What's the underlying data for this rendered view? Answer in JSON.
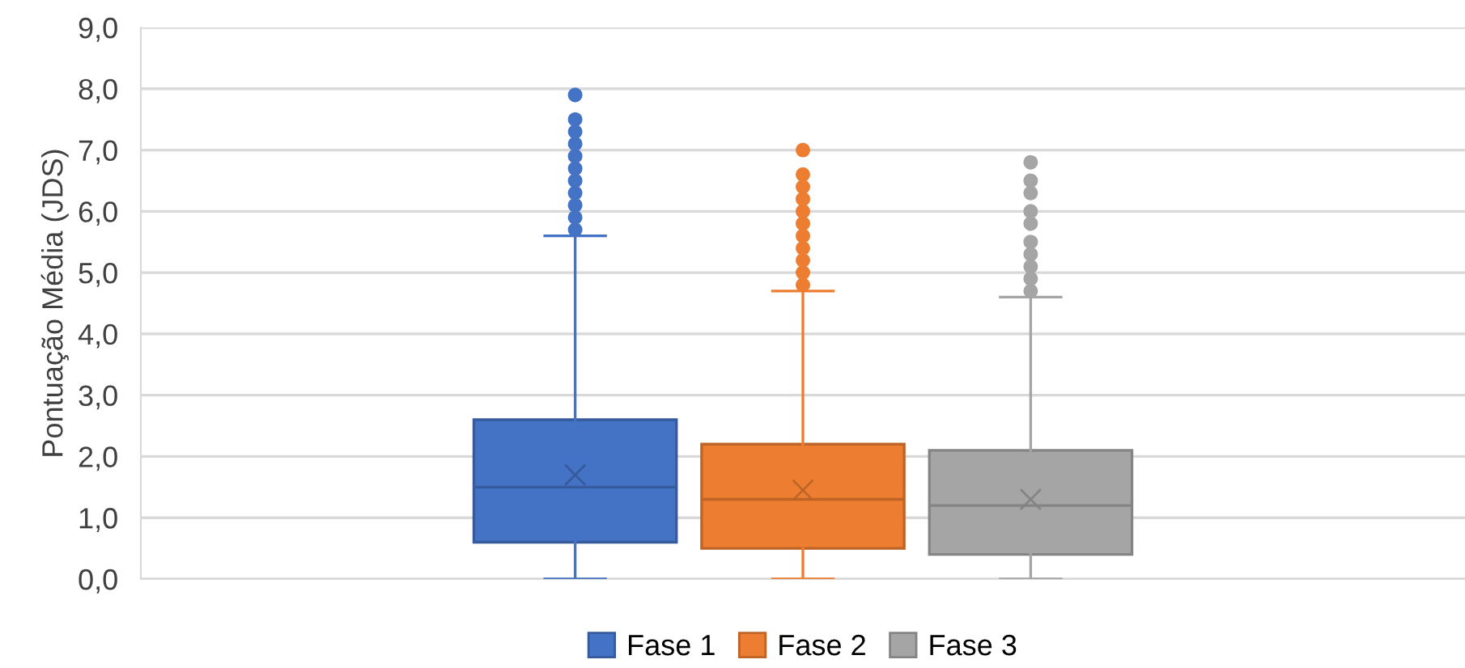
{
  "chart_data": {
    "type": "box",
    "ylabel": "Pontuação Média (JDS)",
    "categories": [
      null
    ],
    "series": [
      {
        "name": "Fase 1",
        "color": "#4472c4",
        "boxes": [
          {
            "low": 0,
            "q1": 0.6,
            "median": 1.5,
            "q3": 2.6,
            "high": 5.6,
            "mean": 1.7,
            "outliers": [
              5.7,
              5.9,
              6.1,
              6.3,
              6.5,
              6.7,
              6.9,
              7.1,
              7.3,
              7.5,
              7.9
            ]
          }
        ]
      },
      {
        "name": "Fase 2",
        "color": "#ed7d31",
        "boxes": [
          {
            "low": 0,
            "q1": 0.5,
            "median": 1.3,
            "q3": 2.2,
            "high": 4.7,
            "mean": 1.45,
            "outliers": [
              4.8,
              5.0,
              5.2,
              5.4,
              5.6,
              5.8,
              6.0,
              6.2,
              6.4,
              6.6,
              7.0
            ]
          }
        ]
      },
      {
        "name": "Fase 3",
        "color": "#a5a5a5",
        "boxes": [
          {
            "low": 0,
            "q1": 0.4,
            "median": 1.2,
            "q3": 2.1,
            "high": 4.6,
            "mean": 1.3,
            "outliers": [
              4.7,
              4.9,
              5.1,
              5.3,
              5.5,
              5.8,
              6.0,
              6.3,
              6.5,
              6.8
            ]
          }
        ]
      }
    ],
    "ylim": [
      0,
      9
    ],
    "yticks": [
      {
        "value": 0,
        "label": "0,0"
      },
      {
        "value": 1,
        "label": "1,0"
      },
      {
        "value": 2,
        "label": "2,0"
      },
      {
        "value": 3,
        "label": "3,0"
      },
      {
        "value": 4,
        "label": "4,0"
      },
      {
        "value": 5,
        "label": "5,0"
      },
      {
        "value": 6,
        "label": "6,0"
      },
      {
        "value": 7,
        "label": "7,0"
      },
      {
        "value": 8,
        "label": "8,0"
      },
      {
        "value": 9,
        "label": "9,0"
      }
    ],
    "grid": "y",
    "legend": "bottom",
    "marker": "circle"
  }
}
